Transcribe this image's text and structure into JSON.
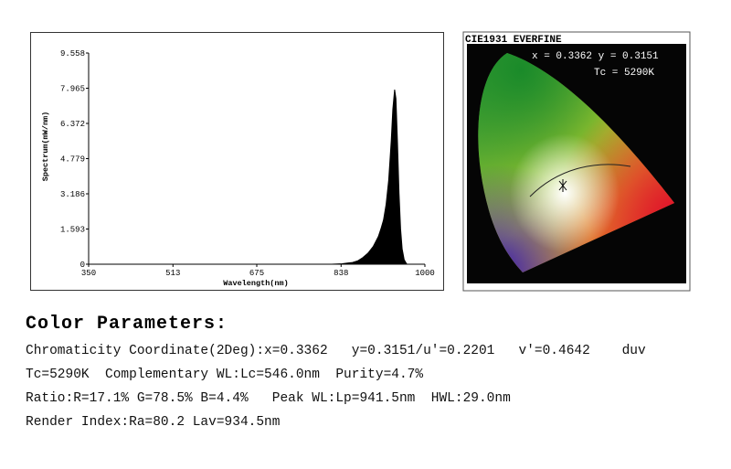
{
  "chart_data": {
    "type": "area",
    "x_label": "Wavelength(nm)",
    "y_label": "Spectrum(mW/nm)",
    "x": [
      820,
      840,
      860,
      870,
      880,
      890,
      900,
      910,
      915,
      920,
      925,
      930,
      935,
      938,
      941.5,
      944,
      947,
      950,
      953,
      956,
      960,
      965
    ],
    "values": [
      0,
      0.02,
      0.08,
      0.15,
      0.3,
      0.5,
      0.8,
      1.25,
      1.6,
      2.0,
      2.7,
      3.8,
      5.6,
      7.0,
      7.9,
      7.5,
      5.5,
      3.2,
      1.6,
      0.7,
      0.2,
      0
    ],
    "color": "#000000",
    "xlim": [
      350,
      1000
    ],
    "xticks": [
      350,
      513,
      675,
      838,
      1000
    ],
    "ylim": [
      0,
      9.558
    ],
    "yticks": [
      0,
      1.593,
      3.186,
      4.779,
      6.372,
      7.965,
      9.558
    ],
    "grid": false
  },
  "cie": {
    "title": "CIE1931 EVERFINE",
    "coordinates": "x = 0.3362 y = 0.3151",
    "cct": "Tc = 5290K"
  },
  "parameters": {
    "heading": "Color Parameters:",
    "lines": [
      "Chromaticity Coordinate(2Deg):x=0.3362   y=0.3151/u'=0.2201   v'=0.4642    duv",
      "Tc=5290K  Complementary WL:Lc=546.0nm  Purity=4.7%",
      "Ratio:R=17.1% G=78.5% B=4.4%   Peak WL:Lp=941.5nm  HWL:29.0nm",
      "Render Index:Ra=80.2 Lav=934.5nm"
    ]
  }
}
